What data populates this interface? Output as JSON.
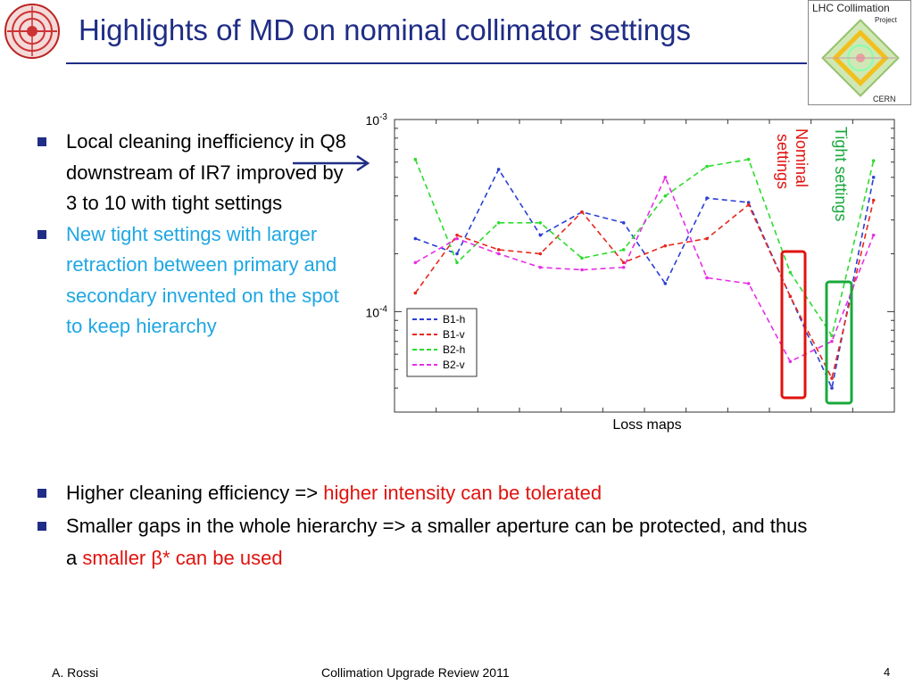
{
  "title": {
    "prefix": "Highlights of ",
    "highlight": "MD on nominal collimator settings"
  },
  "left_bullets": [
    {
      "text": "Local cleaning inefficiency in Q8 downstream of IR7 improved by 3 to 10 with tight settings"
    },
    {
      "text": "New tight settings with larger retraction between primary and secondary invented on the spot to keep hierarchy"
    }
  ],
  "bottom_bullets": [
    {
      "before": "Higher cleaning efficiency => ",
      "highlight": "higher intensity can be tolerated",
      "after": ""
    },
    {
      "before": "Smaller gaps in the whole hierarchy => a smaller aperture can be protected, and thus a ",
      "highlight": "smaller β* can be used",
      "after": ""
    }
  ],
  "annotations": {
    "nominal": "Nominal settings",
    "tight": "Tight settings"
  },
  "chart_data": {
    "type": "line",
    "xlabel": "Loss maps",
    "ylabel": "",
    "y_scale": "log",
    "ylim": [
      3e-05,
      0.001
    ],
    "y_ticks": [
      {
        "value": 0.001,
        "base": "10",
        "exp": "-3"
      },
      {
        "value": 0.0001,
        "base": "10",
        "exp": "-4"
      }
    ],
    "x": [
      1,
      2,
      3,
      4,
      5,
      6,
      7,
      8,
      9,
      10,
      11,
      12
    ],
    "grid": false,
    "legend_position": "bottom-left",
    "series": [
      {
        "name": "B1-h",
        "color": "#2b3fd4",
        "values": [
          0.00024,
          0.0002,
          0.00055,
          0.00025,
          0.00033,
          0.00029,
          0.00014,
          0.00039,
          0.00037,
          0.00012,
          4e-05,
          0.0005
        ]
      },
      {
        "name": "B1-v",
        "color": "#e8271d",
        "values": [
          0.000125,
          0.00025,
          0.00021,
          0.0002,
          0.00033,
          0.00018,
          0.00022,
          0.00024,
          0.00036,
          0.00012,
          4.5e-05,
          0.00038
        ]
      },
      {
        "name": "B2-h",
        "color": "#2edb2e",
        "values": [
          0.00062,
          0.00018,
          0.00029,
          0.00029,
          0.00019,
          0.00021,
          0.0004,
          0.00057,
          0.00062,
          0.00016,
          7.5e-05,
          0.00061
        ]
      },
      {
        "name": "B2-v",
        "color": "#e72ee7",
        "values": [
          0.00018,
          0.00024,
          0.0002,
          0.00017,
          0.000165,
          0.00017,
          0.0005,
          0.00015,
          0.00014,
          5.5e-05,
          7e-05,
          0.00025
        ]
      }
    ]
  },
  "footer": {
    "author": "A. Rossi",
    "event": "Collimation Upgrade Review 2011",
    "page": "4"
  },
  "logos": {
    "right_title": "LHC Collimation",
    "right_sub": "Project",
    "right_org": "CERN"
  },
  "colors": {
    "title": "#1f2d86",
    "highlight_red": "#e0120e",
    "highlight_cyan": "#1ea7e3",
    "nominal_box": "#e0120e",
    "tight_box": "#1aa83c"
  }
}
